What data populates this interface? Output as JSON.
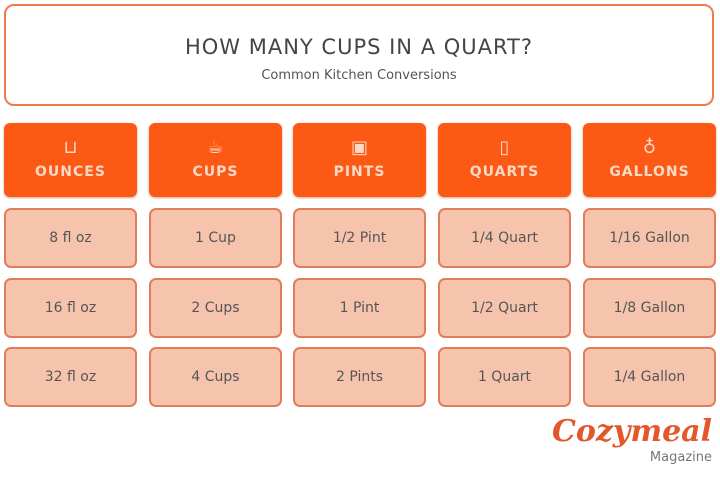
{
  "header": {
    "title": "HOW MANY CUPS IN A QUART?",
    "subtitle": "Common Kitchen Conversions"
  },
  "columns": [
    {
      "label": "OUNCES",
      "icon": "measuring-cup-icon",
      "glyph": "⊔",
      "cells": [
        "8 fl oz",
        "16 fl oz",
        "32 fl oz"
      ]
    },
    {
      "label": "CUPS",
      "icon": "cup-icon",
      "glyph": "☕",
      "cells": [
        "1 Cup",
        "2 Cups",
        "4 Cups"
      ]
    },
    {
      "label": "PINTS",
      "icon": "pint-jar-icon",
      "glyph": "▣",
      "cells": [
        "1/2 Pint",
        "1 Pint",
        "2 Pints"
      ]
    },
    {
      "label": "QUARTS",
      "icon": "quart-carton-icon",
      "glyph": "▯",
      "cells": [
        "1/4 Quart",
        "1/2 Quart",
        "1 Quart"
      ]
    },
    {
      "label": "GALLONS",
      "icon": "gallon-jug-icon",
      "glyph": "♁",
      "cells": [
        "1/16 Gallon",
        "1/8 Gallon",
        "1/4 Gallon"
      ]
    }
  ],
  "logo": {
    "brand": "Cozymeal",
    "sub": "Magazine"
  },
  "colors": {
    "header": "#fc5a14",
    "cell": "#f6c4ad",
    "border": "#e07e5c"
  }
}
